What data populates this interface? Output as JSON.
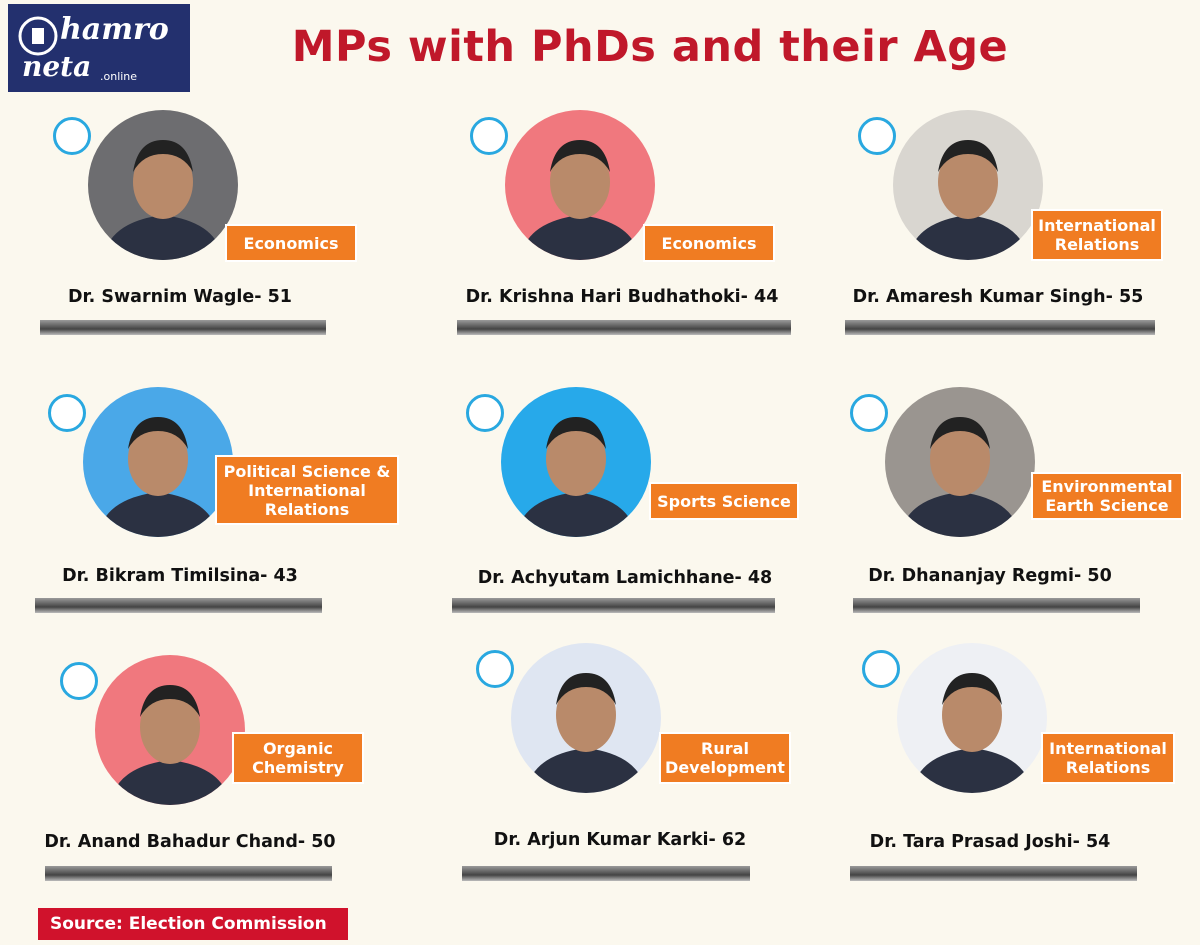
{
  "header": {
    "logo": {
      "line1": "hamro",
      "line2": "neta",
      "suffix": ".online"
    },
    "title": "MPs with PhDs and their Age"
  },
  "cards": [
    {
      "name": "Dr. Swarnim Wagle- 51",
      "field": [
        "Economics"
      ]
    },
    {
      "name": "Dr. Krishna Hari Budhathoki- 44",
      "field": [
        "Economics"
      ]
    },
    {
      "name": "Dr. Amaresh Kumar Singh- 55",
      "field": [
        "International",
        "Relations"
      ]
    },
    {
      "name": "Dr. Bikram Timilsina- 43",
      "field": [
        "Political Science &",
        "International",
        "Relations"
      ]
    },
    {
      "name": "Dr. Achyutam Lamichhane- 48",
      "field": [
        "Sports Science"
      ]
    },
    {
      "name": "Dr. Dhananjay Regmi- 50",
      "field": [
        "Environmental",
        "Earth Science"
      ]
    },
    {
      "name": "Dr. Anand Bahadur Chand- 50",
      "field": [
        "Organic",
        "Chemistry"
      ]
    },
    {
      "name": "Dr. Arjun Kumar Karki- 62",
      "field": [
        "Rural",
        "Development"
      ]
    },
    {
      "name": "Dr. Tara Prasad Joshi- 54",
      "field": [
        "International",
        "Relations"
      ]
    }
  ],
  "source": "Source: Election Commission"
}
